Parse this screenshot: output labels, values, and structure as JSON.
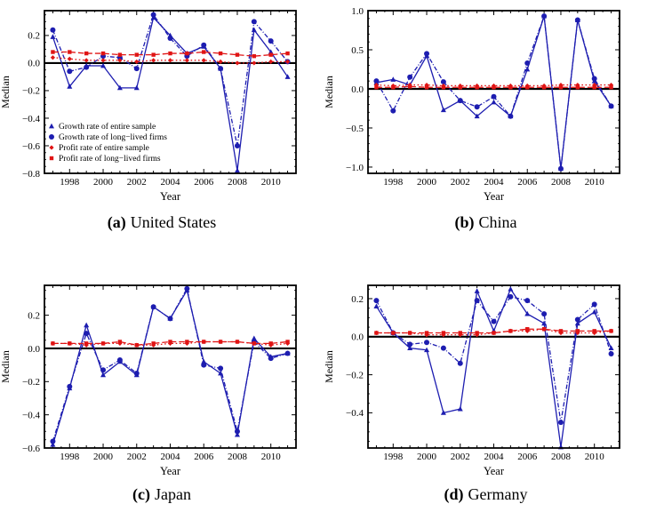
{
  "figure": {
    "ylabel": "Median",
    "xlabel": "Year",
    "colors": {
      "blue": "#1d1db0",
      "red": "#e01414",
      "axis": "#000000",
      "background": "#ffffff"
    },
    "series_styles": {
      "growth_entire": {
        "color": "#1d1db0",
        "marker": "triangle",
        "line": "solid"
      },
      "growth_longlived": {
        "color": "#1d1db0",
        "marker": "circle",
        "line": "dashdot"
      },
      "profit_entire": {
        "color": "#e01414",
        "marker": "diamond",
        "line": "dotted"
      },
      "profit_longlived": {
        "color": "#e01414",
        "marker": "square",
        "line": "dashed"
      }
    }
  },
  "chart_data": [
    {
      "type": "line",
      "panel": "a",
      "caption_prefix": "(a)",
      "caption": "United States",
      "xlabel": "Year",
      "ylabel": "Median",
      "x": [
        1997,
        1998,
        1999,
        2000,
        2001,
        2002,
        2003,
        2004,
        2005,
        2006,
        2007,
        2008,
        2009,
        2010,
        2011
      ],
      "xlim": [
        1996.5,
        2011.5
      ],
      "ylim": [
        -0.8,
        0.38
      ],
      "xticks": [
        1998,
        2000,
        2002,
        2004,
        2006,
        2008,
        2010
      ],
      "yticks": [
        0.2,
        0.0,
        -0.2,
        -0.4,
        -0.6,
        -0.8
      ],
      "yminor": 0.05,
      "show_legend": true,
      "legend_position": "lower-left",
      "grid": false,
      "series": [
        {
          "id": "growth_entire",
          "name": "Growth rate of entire sample",
          "values": [
            0.19,
            -0.17,
            -0.02,
            -0.02,
            -0.18,
            -0.18,
            0.33,
            0.2,
            0.07,
            0.12,
            -0.04,
            -0.78,
            0.24,
            0.08,
            -0.1
          ]
        },
        {
          "id": "growth_longlived",
          "name": "Growth rate of long−lived firms",
          "values": [
            0.24,
            -0.06,
            -0.03,
            0.05,
            0.04,
            -0.04,
            0.35,
            0.18,
            0.05,
            0.13,
            -0.04,
            -0.6,
            0.3,
            0.16,
            0.01
          ]
        },
        {
          "id": "profit_entire",
          "name": "Profit rate of entire sample",
          "values": [
            0.04,
            0.03,
            0.02,
            0.02,
            0.02,
            0.01,
            0.02,
            0.02,
            0.02,
            0.02,
            0.01,
            0.0,
            0.0,
            0.01,
            0.01
          ]
        },
        {
          "id": "profit_longlived",
          "name": "Profit rate of long−lived firms",
          "values": [
            0.08,
            0.08,
            0.07,
            0.07,
            0.06,
            0.06,
            0.06,
            0.07,
            0.07,
            0.08,
            0.07,
            0.06,
            0.05,
            0.06,
            0.07
          ]
        }
      ]
    },
    {
      "type": "line",
      "panel": "b",
      "caption_prefix": "(b)",
      "caption": "China",
      "xlabel": "Year",
      "ylabel": "Median",
      "x": [
        1997,
        1998,
        1999,
        2000,
        2001,
        2002,
        2003,
        2004,
        2005,
        2006,
        2007,
        2008,
        2009,
        2010,
        2011
      ],
      "xlim": [
        1996.5,
        2011.5
      ],
      "ylim": [
        -1.08,
        1.0
      ],
      "xticks": [
        1998,
        2000,
        2002,
        2004,
        2006,
        2008,
        2010
      ],
      "yticks": [
        1.0,
        0.5,
        0.0,
        -0.5,
        -1.0
      ],
      "yminor": 0.1,
      "show_legend": false,
      "grid": false,
      "series": [
        {
          "id": "growth_entire",
          "name": "Growth rate of entire sample",
          "values": [
            0.08,
            0.12,
            0.05,
            0.42,
            -0.27,
            -0.15,
            -0.35,
            -0.17,
            -0.35,
            0.25,
            0.93,
            -1.02,
            0.88,
            0.1,
            -0.22
          ]
        },
        {
          "id": "growth_longlived",
          "name": "Growth rate of long−lived firms",
          "values": [
            0.1,
            -0.28,
            0.15,
            0.45,
            0.09,
            -0.15,
            -0.23,
            -0.1,
            -0.35,
            0.33,
            0.93,
            -1.02,
            0.88,
            0.13,
            -0.22
          ]
        },
        {
          "id": "profit_entire",
          "name": "Profit rate of entire sample",
          "values": [
            0.05,
            0.04,
            0.05,
            0.05,
            0.04,
            0.04,
            0.04,
            0.04,
            0.04,
            0.04,
            0.04,
            0.05,
            0.05,
            0.05,
            0.05
          ]
        },
        {
          "id": "profit_longlived",
          "name": "Profit rate of long−lived firms",
          "values": [
            0.02,
            0.02,
            0.03,
            0.02,
            0.02,
            0.02,
            0.02,
            0.02,
            0.02,
            0.02,
            0.02,
            0.02,
            0.02,
            0.02,
            0.02
          ]
        }
      ]
    },
    {
      "type": "line",
      "panel": "c",
      "caption_prefix": "(c)",
      "caption": "Japan",
      "xlabel": "Year",
      "ylabel": "Median",
      "x": [
        1997,
        1998,
        1999,
        2000,
        2001,
        2002,
        2003,
        2004,
        2005,
        2006,
        2007,
        2008,
        2009,
        2010,
        2011
      ],
      "xlim": [
        1996.5,
        2011.5
      ],
      "ylim": [
        -0.6,
        0.38
      ],
      "xticks": [
        1998,
        2000,
        2002,
        2004,
        2006,
        2008,
        2010
      ],
      "yticks": [
        0.2,
        0.0,
        -0.2,
        -0.4,
        -0.6
      ],
      "yminor": 0.05,
      "show_legend": false,
      "grid": false,
      "series": [
        {
          "id": "growth_entire",
          "name": "Growth rate of entire sample",
          "values": [
            -0.58,
            -0.24,
            0.14,
            -0.16,
            -0.08,
            -0.16,
            0.25,
            0.18,
            0.35,
            -0.08,
            -0.15,
            -0.52,
            0.06,
            -0.05,
            -0.03
          ]
        },
        {
          "id": "growth_longlived",
          "name": "Growth rate of long−lived firms",
          "values": [
            -0.56,
            -0.23,
            0.09,
            -0.13,
            -0.07,
            -0.15,
            0.25,
            0.18,
            0.36,
            -0.1,
            -0.12,
            -0.5,
            0.04,
            -0.06,
            -0.03
          ]
        },
        {
          "id": "profit_entire",
          "name": "Profit rate of entire sample",
          "values": [
            0.03,
            0.03,
            0.02,
            0.03,
            0.03,
            0.02,
            0.02,
            0.03,
            0.03,
            0.04,
            0.04,
            0.04,
            0.03,
            0.02,
            0.03
          ]
        },
        {
          "id": "profit_longlived",
          "name": "Profit rate of long−lived firms",
          "values": [
            0.03,
            0.03,
            0.03,
            0.03,
            0.04,
            0.02,
            0.03,
            0.04,
            0.04,
            0.04,
            0.04,
            0.04,
            0.03,
            0.03,
            0.04
          ]
        }
      ]
    },
    {
      "type": "line",
      "panel": "d",
      "caption_prefix": "(d)",
      "caption": "Germany",
      "xlabel": "Year",
      "ylabel": "Median",
      "x": [
        1997,
        1998,
        1999,
        2000,
        2001,
        2002,
        2003,
        2004,
        2005,
        2006,
        2007,
        2008,
        2009,
        2010,
        2011
      ],
      "xlim": [
        1996.5,
        2011.5
      ],
      "ylim": [
        -0.585,
        0.27
      ],
      "xticks": [
        1998,
        2000,
        2002,
        2004,
        2006,
        2008,
        2010
      ],
      "yticks": [
        0.2,
        0.0,
        -0.2,
        -0.4
      ],
      "yminor": 0.05,
      "show_legend": false,
      "grid": false,
      "series": [
        {
          "id": "growth_entire",
          "name": "Growth rate of entire sample",
          "values": [
            0.16,
            0.02,
            -0.06,
            -0.07,
            -0.4,
            -0.38,
            0.24,
            0.03,
            0.25,
            0.12,
            0.07,
            -0.58,
            0.07,
            0.13,
            -0.06
          ]
        },
        {
          "id": "growth_longlived",
          "name": "Growth rate of long−lived firms",
          "values": [
            0.19,
            0.02,
            -0.04,
            -0.03,
            -0.06,
            -0.14,
            0.19,
            0.08,
            0.21,
            0.19,
            0.12,
            -0.45,
            0.09,
            0.17,
            -0.09
          ]
        },
        {
          "id": "profit_entire",
          "name": "Profit rate of entire sample",
          "values": [
            0.02,
            0.02,
            0.02,
            0.01,
            0.01,
            0.01,
            0.01,
            0.02,
            0.03,
            0.03,
            0.04,
            0.02,
            0.02,
            0.02,
            0.03
          ]
        },
        {
          "id": "profit_longlived",
          "name": "Profit rate of long−lived firms",
          "values": [
            0.02,
            0.02,
            0.02,
            0.02,
            0.02,
            0.02,
            0.02,
            0.02,
            0.03,
            0.04,
            0.04,
            0.03,
            0.03,
            0.03,
            0.03
          ]
        }
      ]
    }
  ]
}
